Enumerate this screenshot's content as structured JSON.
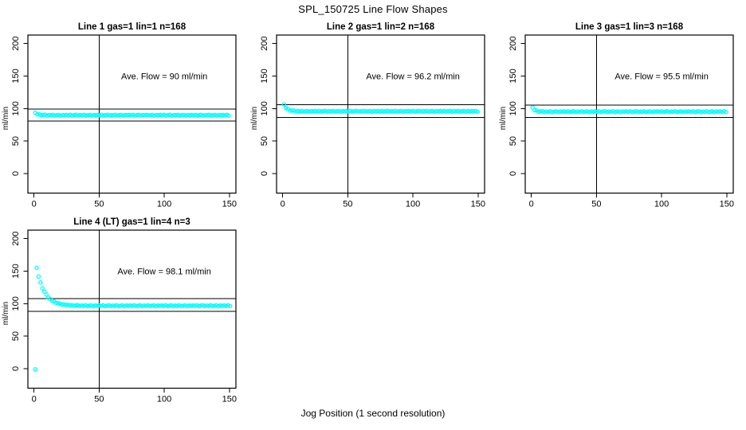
{
  "page": {
    "title": "SPL_150725  Line Flow Shapes",
    "shared_xlabel": "Jog Position (1 second resolution)",
    "background_color": "#ffffff",
    "axis_color": "#000000",
    "point_color": "#00ffff"
  },
  "chart_data": [
    {
      "type": "scatter",
      "title": "Line 1 gas=1 lin=1 n=168",
      "annotation": "Ave. Flow =  90  ml/min",
      "ave_flow_ml_min": 90,
      "ylabel": "ml/min",
      "xticks": [
        0,
        50,
        100,
        150
      ],
      "yticks": [
        0,
        50,
        100,
        150,
        200
      ],
      "xlim": [
        -4.7,
        155
      ],
      "ylim": [
        -30,
        213
      ],
      "grid": false,
      "vline_x": 50,
      "hlines": [
        99,
        81
      ],
      "annotation_xy": [
        100,
        150
      ],
      "marker": "open-circle",
      "series": [
        {
          "name": "flow-trace",
          "color": "#00ffff",
          "x_start": 1,
          "x_step": 1.5,
          "y": [
            93.7,
            91.1,
            91.2,
            89.6,
            90.1,
            90.6,
            89.2,
            90.0,
            89.6,
            90.4,
            89.3,
            89.8,
            90.3,
            89.1,
            90.1,
            89.7,
            90.2,
            89.5,
            90.4,
            89.2,
            89.9,
            90.5,
            89.2,
            90.0,
            89.6,
            90.4,
            89.3,
            89.8,
            90.3,
            89.1,
            90.1,
            89.7,
            90.2,
            89.5,
            90.4,
            89.2,
            89.9,
            90.5,
            89.2,
            90.0,
            89.6,
            90.4,
            89.3,
            89.8,
            90.3,
            89.1,
            90.1,
            89.7,
            90.2,
            89.5,
            90.4,
            89.2,
            89.9,
            90.5,
            89.2,
            90.0,
            89.6,
            90.4,
            89.3,
            89.8,
            90.3,
            89.1,
            90.1,
            89.7,
            90.2,
            89.5,
            90.4,
            89.2,
            89.9,
            90.5,
            89.2,
            90.0,
            89.6,
            90.4,
            89.3,
            89.8,
            90.3,
            89.1,
            90.1,
            89.7,
            90.2,
            89.5,
            90.4,
            89.2,
            89.9,
            90.5,
            89.2,
            90.0,
            89.6,
            90.4,
            89.3,
            89.8,
            90.3,
            89.1,
            90.1,
            89.7,
            90.2,
            89.5,
            90.4,
            89.2
          ]
        }
      ],
      "extra_points": []
    },
    {
      "type": "scatter",
      "title": "Line 2 gas=1 lin=2 n=168",
      "annotation": "Ave. Flow =  96.2  ml/min",
      "ave_flow_ml_min": 96.2,
      "ylabel": "ml/min",
      "xticks": [
        0,
        50,
        100,
        150
      ],
      "yticks": [
        0,
        50,
        100,
        150,
        200
      ],
      "xlim": [
        -4.7,
        155
      ],
      "ylim": [
        -30,
        213
      ],
      "grid": false,
      "vline_x": 50,
      "hlines": [
        105.8,
        86.6
      ],
      "annotation_xy": [
        100,
        150
      ],
      "marker": "open-circle",
      "series": [
        {
          "name": "flow-trace",
          "color": "#00ffff",
          "x_start": 1,
          "x_step": 1.5,
          "y": [
            106.2,
            101.0,
            99.4,
            96.9,
            96.8,
            97.0,
            95.4,
            96.2,
            95.6,
            96.4,
            95.3,
            95.8,
            96.3,
            95.1,
            96.1,
            95.7,
            96.2,
            95.5,
            96.4,
            95.2,
            95.9,
            96.5,
            95.2,
            96.0,
            95.6,
            96.4,
            95.3,
            95.8,
            96.3,
            95.1,
            96.1,
            95.7,
            96.2,
            95.5,
            96.4,
            95.2,
            95.9,
            96.5,
            95.2,
            96.0,
            95.6,
            96.4,
            95.3,
            95.8,
            96.3,
            95.1,
            96.1,
            95.7,
            96.2,
            95.5,
            96.4,
            95.2,
            95.9,
            96.5,
            95.2,
            96.0,
            95.6,
            96.4,
            95.3,
            95.8,
            96.3,
            95.1,
            96.1,
            95.7,
            96.2,
            95.5,
            96.4,
            95.2,
            95.9,
            96.5,
            95.2,
            96.0,
            95.6,
            96.4,
            95.3,
            95.8,
            96.3,
            95.1,
            96.1,
            95.7,
            96.2,
            95.5,
            96.4,
            95.2,
            95.9,
            96.5,
            95.2,
            96.0,
            95.6,
            96.4,
            95.3,
            95.8,
            96.3,
            95.1,
            96.1,
            95.7,
            96.2,
            95.5,
            96.4,
            95.2
          ]
        }
      ],
      "extra_points": []
    },
    {
      "type": "scatter",
      "title": "Line 3 gas=1 lin=3 n=168",
      "annotation": "Ave. Flow =  95.5  ml/min",
      "ave_flow_ml_min": 95.5,
      "ylabel": "ml/min",
      "xticks": [
        0,
        50,
        100,
        150
      ],
      "yticks": [
        0,
        50,
        100,
        150,
        200
      ],
      "xlim": [
        -4.7,
        155
      ],
      "ylim": [
        -30,
        213
      ],
      "grid": false,
      "vline_x": 50,
      "hlines": [
        105.1,
        86.1
      ],
      "annotation_xy": [
        100,
        150
      ],
      "marker": "open-circle",
      "series": [
        {
          "name": "flow-trace",
          "color": "#00ffff",
          "x_start": 1,
          "x_step": 1.5,
          "y": [
            101.6,
            97.5,
            96.9,
            95.1,
            95.5,
            96.0,
            94.6,
            95.4,
            95.0,
            95.8,
            94.7,
            95.2,
            95.7,
            94.5,
            95.5,
            95.1,
            95.6,
            94.9,
            95.8,
            94.6,
            95.3,
            95.9,
            94.6,
            95.4,
            95.0,
            95.8,
            94.7,
            95.2,
            95.7,
            94.5,
            95.5,
            95.1,
            95.6,
            94.9,
            95.8,
            94.6,
            95.3,
            95.9,
            94.6,
            95.4,
            95.0,
            95.8,
            94.7,
            95.2,
            95.7,
            94.5,
            95.5,
            95.1,
            95.6,
            94.9,
            95.8,
            94.6,
            95.3,
            95.9,
            94.6,
            95.4,
            95.0,
            95.8,
            94.7,
            95.2,
            95.7,
            94.5,
            95.5,
            95.1,
            95.6,
            94.9,
            95.8,
            94.6,
            95.3,
            95.9,
            94.6,
            95.4,
            95.0,
            95.8,
            94.7,
            95.2,
            95.7,
            94.5,
            95.5,
            95.1,
            95.6,
            94.9,
            95.8,
            94.6,
            95.3,
            95.9,
            94.6,
            95.4,
            95.0,
            95.8,
            94.7,
            95.2,
            95.7,
            94.5,
            95.5,
            95.1,
            95.6,
            94.9,
            95.8,
            94.6
          ]
        }
      ],
      "extra_points": []
    },
    {
      "type": "scatter",
      "title": "Line 4 (LT) gas=1 lin=4 n=3",
      "annotation": "Ave. Flow =  98.1  ml/min",
      "ave_flow_ml_min": 98.1,
      "ylabel": "ml/min",
      "xticks": [
        0,
        50,
        100,
        150
      ],
      "yticks": [
        0,
        50,
        100,
        150,
        200
      ],
      "xlim": [
        -4.7,
        155
      ],
      "ylim": [
        -30,
        213
      ],
      "grid": false,
      "vline_x": 50,
      "hlines": [
        107.9,
        88.3
      ],
      "annotation_xy": [
        100,
        150
      ],
      "marker": "open-circle",
      "series": [
        {
          "name": "flow-trace",
          "color": "#00ffff",
          "x_start": 2,
          "x_step": 1.5,
          "y": [
            155.2,
            141.7,
            132.6,
            123.6,
            118.2,
            114.1,
            109.1,
            107.1,
            104.5,
            103.5,
            101.1,
            100.5,
            100.2,
            98.4,
            98.9,
            98.1,
            98.3,
            97.3,
            98.0,
            96.7,
            97.3,
            97.8,
            96.4,
            97.2,
            96.6,
            97.4,
            96.3,
            96.8,
            97.3,
            96.1,
            97.1,
            96.7,
            97.2,
            96.5,
            97.4,
            96.2,
            96.9,
            97.5,
            96.2,
            97.0,
            96.6,
            97.4,
            96.3,
            96.8,
            97.3,
            96.1,
            97.1,
            96.7,
            97.2,
            96.5,
            97.4,
            96.2,
            96.9,
            97.5,
            96.2,
            97.0,
            96.6,
            97.4,
            96.3,
            96.8,
            97.3,
            96.1,
            97.1,
            96.7,
            97.2,
            96.5,
            97.4,
            96.2,
            96.9,
            97.5,
            96.2,
            97.0,
            96.6,
            97.4,
            96.3,
            96.8,
            97.3,
            96.1,
            97.1,
            96.7,
            97.2,
            96.5,
            97.4,
            96.2,
            96.9,
            97.5,
            96.2,
            97.0,
            96.6,
            97.4,
            96.3,
            96.8,
            97.3,
            96.1,
            97.1,
            96.7,
            97.2,
            96.5,
            97.4,
            96.2
          ]
        }
      ],
      "extra_points": [
        [
          1,
          -1
        ]
      ]
    }
  ]
}
